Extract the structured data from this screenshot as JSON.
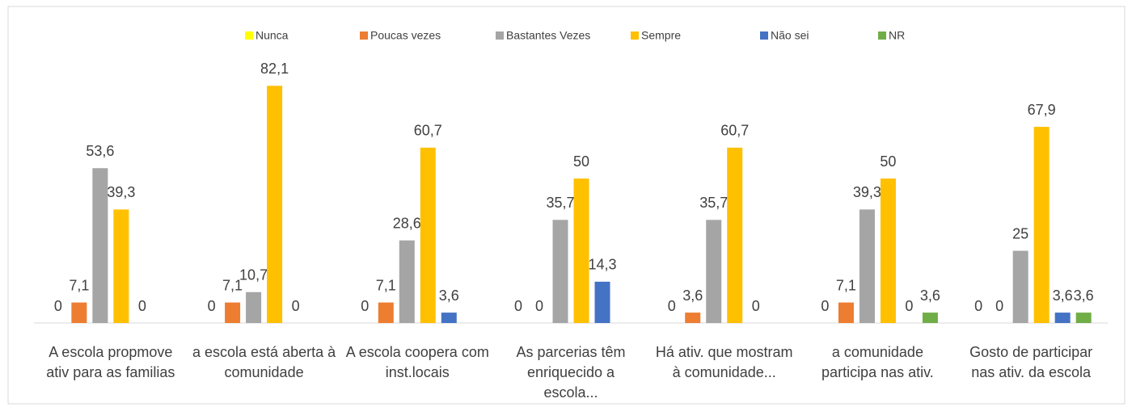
{
  "chart_data": {
    "type": "bar",
    "categories": [
      "A escola propmove ativ para as familias",
      "a escola está aberta à comunidade",
      "A escola coopera com inst.locais",
      "As parcerias têm enriquecido a escola...",
      "Há ativ. que mostram à comunidade...",
      "a comunidade participa nas ativ.",
      "Gosto de participar nas ativ. da escola"
    ],
    "series": [
      {
        "name": "Nunca",
        "color": "#FFFF00",
        "values": [
          0,
          0,
          0,
          0,
          0,
          0,
          0
        ],
        "value_labels": [
          "0",
          "0",
          "0",
          "0",
          "0",
          "0",
          "0"
        ]
      },
      {
        "name": "Poucas vezes",
        "color": "#ED7D31",
        "values": [
          7.1,
          7.1,
          7.1,
          0,
          3.6,
          7.1,
          0
        ],
        "value_labels": [
          "7,1",
          "7,1",
          "7,1",
          "0",
          "3,6",
          "7,1",
          "0"
        ]
      },
      {
        "name": "Bastantes Vezes",
        "color": "#A5A5A5",
        "values": [
          53.6,
          10.7,
          28.6,
          35.7,
          35.7,
          39.3,
          25
        ],
        "value_labels": [
          "53,6",
          "10,7",
          "28,6",
          "35,7",
          "35,7",
          "39,3",
          "25"
        ]
      },
      {
        "name": "Sempre",
        "color": "#FFC000",
        "values": [
          39.3,
          82.1,
          60.7,
          50,
          60.7,
          50,
          67.9
        ],
        "value_labels": [
          "39,3",
          "82,1",
          "60,7",
          "50",
          "60,7",
          "50",
          "67,9"
        ]
      },
      {
        "name": "Não sei",
        "color": "#4472C4",
        "values": [
          0,
          0,
          3.6,
          14.3,
          0,
          0,
          3.6
        ],
        "value_labels": [
          "0",
          "0",
          "3,6",
          "14,3",
          "0",
          "0",
          "3,6"
        ]
      },
      {
        "name": "NR",
        "color": "#70AD47",
        "values": [
          null,
          null,
          null,
          null,
          null,
          3.6,
          3.6
        ],
        "value_labels": [
          null,
          null,
          null,
          null,
          null,
          "3,6",
          "3,6"
        ]
      }
    ],
    "ylim": [
      0,
      90
    ],
    "legend": "top"
  }
}
